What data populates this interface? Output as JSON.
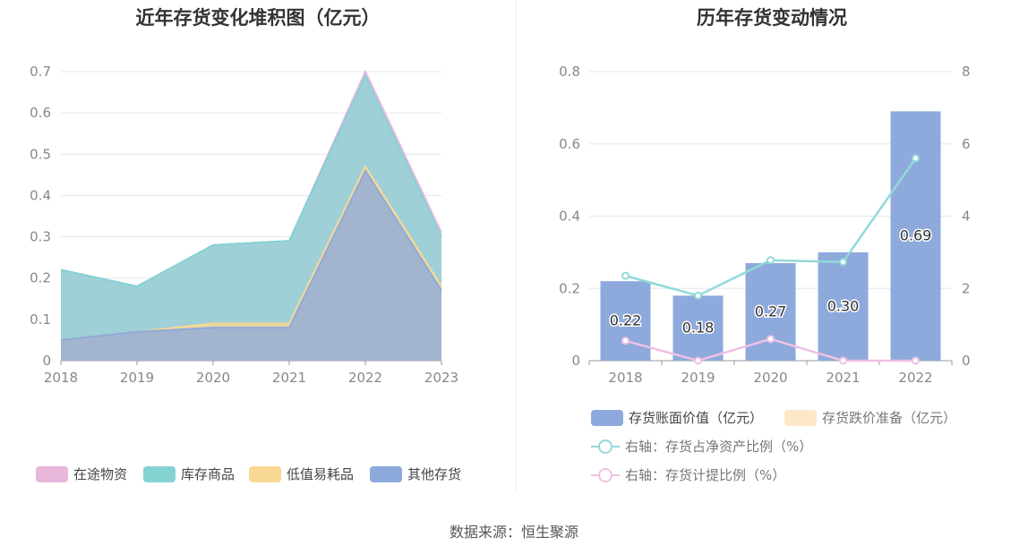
{
  "left_chart": {
    "title": "近年存货变化堆积图（亿元）",
    "legend": [
      {
        "label": "在途物资",
        "color": "#e9b6dc"
      },
      {
        "label": "库存商品",
        "color": "#84d3d3"
      },
      {
        "label": "低值易耗品",
        "color": "#f8d892"
      },
      {
        "label": "其他存货",
        "color": "#8eaadc"
      }
    ]
  },
  "right_chart": {
    "title": "历年存货变动情况",
    "legend": [
      {
        "label": "存货账面价值（亿元）",
        "color": "#8eaadc"
      },
      {
        "label": "存货跌价准备（亿元）",
        "color": "#fce7c6"
      },
      {
        "label": "右轴：存货占净资产比例（%）",
        "color": "#92d9d9"
      },
      {
        "label": "右轴：存货计提比例（%）",
        "color": "#f0c0e4"
      }
    ]
  },
  "chart_data": [
    {
      "type": "area",
      "stacked": true,
      "title": "近年存货变化堆积图（亿元）",
      "x": [
        "2018",
        "2019",
        "2020",
        "2021",
        "2022",
        "2023"
      ],
      "ylim": [
        0,
        0.7
      ],
      "yticks": [
        "0",
        "0.1",
        "0.2",
        "0.3",
        "0.4",
        "0.5",
        "0.6",
        "0.7"
      ],
      "grid": true,
      "legend_position": "bottom",
      "series": [
        {
          "name": "其他存货",
          "color": "#8eaadc",
          "values": [
            0.05,
            0.07,
            0.08,
            0.08,
            0.46,
            0.17
          ]
        },
        {
          "name": "低值易耗品",
          "color": "#f8d892",
          "values": [
            0,
            0,
            0.01,
            0.01,
            0.01,
            0.01
          ]
        },
        {
          "name": "库存商品",
          "color": "#84d3d3",
          "values": [
            0.17,
            0.11,
            0.19,
            0.2,
            0.22,
            0.12
          ]
        },
        {
          "name": "在途物资",
          "color": "#e9b6dc",
          "values": [
            0,
            0,
            0,
            0,
            0.01,
            0.01
          ]
        }
      ]
    },
    {
      "type": "bar",
      "title": "历年存货变动情况",
      "categories": [
        "2018",
        "2019",
        "2020",
        "2021",
        "2022"
      ],
      "ylim": [
        0,
        0.8
      ],
      "yticks": [
        "0",
        "0.2",
        "0.4",
        "0.6",
        "0.8"
      ],
      "y2lim": [
        0,
        8
      ],
      "y2ticks": [
        "0",
        "2",
        "4",
        "6",
        "8"
      ],
      "grid": true,
      "legend_position": "bottom",
      "series": [
        {
          "name": "存货账面价值（亿元）",
          "type": "bar",
          "color": "#8eaadc",
          "values": [
            0.22,
            0.18,
            0.27,
            0.3,
            0.69
          ],
          "labels": [
            "0.22",
            "0.18",
            "0.27",
            "0.30",
            "0.69"
          ]
        },
        {
          "name": "存货跌价准备（亿元）",
          "type": "bar",
          "color": "#fce7c6",
          "values": [
            0,
            0,
            0,
            0,
            0
          ]
        },
        {
          "name": "右轴：存货占净资产比例（%）",
          "type": "line",
          "axis": "right",
          "color": "#92d9d9",
          "values": [
            2.35,
            1.8,
            2.78,
            2.73,
            5.6
          ]
        },
        {
          "name": "右轴：存货计提比例（%）",
          "type": "line",
          "axis": "right",
          "color": "#f0c0e4",
          "values": [
            0.55,
            0,
            0.6,
            0,
            0
          ]
        }
      ]
    }
  ],
  "source": "数据来源：恒生聚源"
}
